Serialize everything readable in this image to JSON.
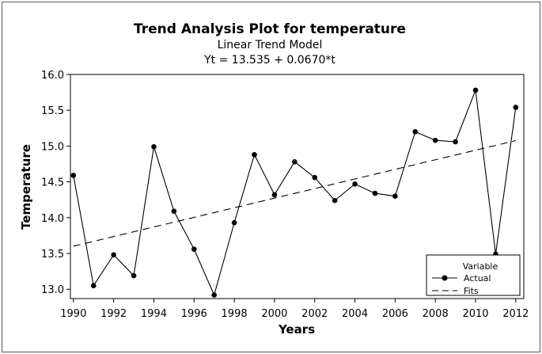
{
  "chart_data": {
    "type": "line",
    "title": "Trend Analysis Plot for temperature",
    "subtitle": "Linear Trend Model",
    "equation": "Yt = 13.535 + 0.0670*t",
    "xlabel": "Years",
    "ylabel": "Temperature",
    "xlim": [
      1989.85,
      2012.4
    ],
    "ylim": [
      12.87,
      16.0
    ],
    "x_ticks": [
      1990,
      1992,
      1994,
      1996,
      1998,
      2000,
      2002,
      2004,
      2006,
      2008,
      2010,
      2012
    ],
    "y_ticks": [
      13.0,
      13.5,
      14.0,
      14.5,
      15.0,
      15.5,
      16.0
    ],
    "x": [
      1990,
      1991,
      1992,
      1993,
      1994,
      1995,
      1996,
      1997,
      1998,
      1999,
      2000,
      2001,
      2002,
      2003,
      2004,
      2005,
      2006,
      2007,
      2008,
      2009,
      2010,
      2011,
      2012
    ],
    "series": [
      {
        "name": "Actual",
        "style": "line-marker",
        "color": "#000000",
        "values": [
          14.59,
          13.05,
          13.48,
          13.19,
          14.99,
          14.09,
          13.56,
          12.92,
          13.93,
          14.88,
          14.32,
          14.78,
          14.56,
          14.24,
          14.47,
          14.34,
          14.3,
          15.2,
          15.08,
          15.06,
          15.78,
          13.49,
          15.54
        ]
      },
      {
        "name": "Fits",
        "style": "dashed",
        "color": "#000000",
        "values": [
          13.602,
          13.669,
          13.736,
          13.803,
          13.87,
          13.937,
          14.004,
          14.071,
          14.138,
          14.205,
          14.272,
          14.339,
          14.406,
          14.473,
          14.54,
          14.607,
          14.674,
          14.741,
          14.808,
          14.875,
          14.942,
          15.009,
          15.076
        ]
      }
    ],
    "legend": {
      "title": "Variable",
      "position": "bottom-right",
      "entries": [
        "Actual",
        "Fits"
      ]
    },
    "grid": false
  }
}
